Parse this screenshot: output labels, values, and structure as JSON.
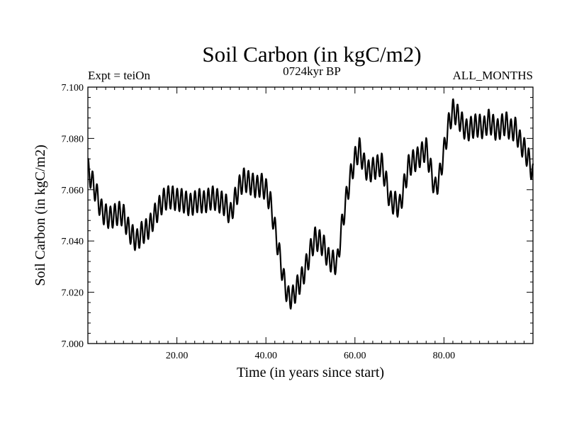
{
  "chart_data": {
    "type": "line",
    "title": "Soil Carbon (in kgC/m2)",
    "subtitle_left": "Expt = teiOn",
    "subtitle_center": "0724kyr BP",
    "subtitle_right": "ALL_MONTHS",
    "xlabel": "Time (in years since start)",
    "ylabel": "Soil Carbon (in kgC/m2)",
    "xlim": [
      0,
      100
    ],
    "ylim": [
      7.0,
      7.1
    ],
    "x_ticks": [
      20,
      40,
      60,
      80
    ],
    "x_tick_labels": [
      "20.00",
      "40.00",
      "60.00",
      "80.00"
    ],
    "y_ticks": [
      7.0,
      7.02,
      7.04,
      7.06,
      7.08,
      7.1
    ],
    "y_tick_labels": [
      "7.000",
      "7.020",
      "7.040",
      "7.060",
      "7.080",
      "7.100"
    ],
    "grid": false,
    "annual_cycle_amplitude": 0.0045,
    "series": [
      {
        "name": "Soil Carbon",
        "trend_x": [
          0,
          1,
          2,
          3,
          4,
          5,
          6,
          7,
          8,
          9,
          10,
          11,
          12,
          13,
          14,
          15,
          16,
          17,
          18,
          19,
          20,
          21,
          22,
          23,
          24,
          25,
          26,
          27,
          28,
          29,
          30,
          31,
          32,
          33,
          34,
          35,
          36,
          37,
          38,
          39,
          40,
          41,
          42,
          43,
          44,
          45,
          46,
          47,
          48,
          49,
          50,
          51,
          52,
          53,
          54,
          55,
          56,
          57,
          58,
          59,
          60,
          61,
          62,
          63,
          64,
          65,
          66,
          67,
          68,
          69,
          70,
          71,
          72,
          73,
          74,
          75,
          76,
          77,
          78,
          79,
          80,
          81,
          82,
          83,
          84,
          85,
          86,
          87,
          88,
          89,
          90,
          91,
          92,
          93,
          94,
          95,
          96,
          97,
          98,
          99,
          100
        ],
        "trend_y": [
          7.068,
          7.063,
          7.058,
          7.052,
          7.05,
          7.049,
          7.05,
          7.051,
          7.05,
          7.045,
          7.042,
          7.04,
          7.043,
          7.044,
          7.046,
          7.05,
          7.053,
          7.056,
          7.057,
          7.057,
          7.056,
          7.056,
          7.055,
          7.054,
          7.055,
          7.056,
          7.055,
          7.056,
          7.057,
          7.056,
          7.055,
          7.054,
          7.05,
          7.056,
          7.061,
          7.064,
          7.063,
          7.062,
          7.061,
          7.062,
          7.06,
          7.055,
          7.045,
          7.035,
          7.025,
          7.018,
          7.018,
          7.022,
          7.025,
          7.03,
          7.036,
          7.041,
          7.04,
          7.038,
          7.033,
          7.032,
          7.031,
          7.045,
          7.056,
          7.065,
          7.072,
          7.076,
          7.07,
          7.067,
          7.068,
          7.069,
          7.07,
          7.063,
          7.055,
          7.055,
          7.053,
          7.061,
          7.069,
          7.071,
          7.072,
          7.074,
          7.076,
          7.068,
          7.06,
          7.065,
          7.075,
          7.085,
          7.091,
          7.089,
          7.086,
          7.083,
          7.084,
          7.085,
          7.085,
          7.084,
          7.087,
          7.085,
          7.083,
          7.085,
          7.086,
          7.083,
          7.084,
          7.079,
          7.076,
          7.072,
          7.066
        ]
      }
    ]
  }
}
